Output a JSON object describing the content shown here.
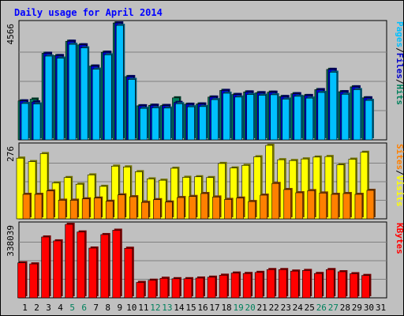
{
  "chart_data": {
    "type": "bar",
    "title": "Daily usage for April 2014",
    "categories": [
      "1",
      "2",
      "3",
      "4",
      "5",
      "6",
      "7",
      "8",
      "9",
      "10",
      "11",
      "12",
      "13",
      "14",
      "15",
      "16",
      "17",
      "18",
      "19",
      "20",
      "21",
      "22",
      "23",
      "24",
      "25",
      "26",
      "27",
      "28",
      "29",
      "30",
      "31"
    ],
    "weekend_days": [
      "5",
      "6",
      "12",
      "13",
      "19",
      "20",
      "26",
      "27"
    ],
    "panels": [
      {
        "id": "hits_files_pages",
        "max_label": "4566",
        "ymax": 4566,
        "series": [
          {
            "name": "Hits",
            "color": "#00805c",
            "values": [
              1520,
              1590,
              3380,
              3290,
              3850,
              3710,
              2880,
              3420,
              4566,
              2470,
              1330,
              1350,
              1340,
              1640,
              1390,
              1400,
              1670,
              1930,
              1770,
              1870,
              1840,
              1860,
              1690,
              1800,
              1730,
              1960,
              2750,
              1880,
              2070,
              1640,
              null
            ]
          },
          {
            "name": "Files",
            "color": "#0000cc",
            "values": [
              1520,
              1480,
              3380,
              3290,
              3850,
              3710,
              2880,
              3420,
              4566,
              2470,
              1330,
              1350,
              1340,
              1460,
              1390,
              1400,
              1670,
              1930,
              1770,
              1870,
              1840,
              1860,
              1690,
              1800,
              1730,
              1960,
              2750,
              1880,
              2070,
              1640,
              null
            ]
          },
          {
            "name": "Pages",
            "color": "#00c0ff",
            "values": [
              1420,
              1400,
              3270,
              3190,
              3730,
              3590,
              2760,
              3320,
              4470,
              2360,
              1230,
              1250,
              1240,
              1410,
              1290,
              1300,
              1570,
              1820,
              1670,
              1770,
              1740,
              1760,
              1590,
              1700,
              1630,
              1850,
              2640,
              1780,
              1960,
              1540,
              null
            ]
          }
        ]
      },
      {
        "id": "visits_sites",
        "max_label": "276",
        "ymax": 276,
        "series": [
          {
            "name": "Visits",
            "color": "#ffff00",
            "values": [
              228,
              215,
              245,
              135,
              155,
              130,
              165,
              122,
              198,
              195,
              177,
              150,
              145,
              190,
              156,
              158,
              155,
              208,
              191,
              201,
              233,
              276,
              222,
              219,
              225,
              232,
              234,
              203,
              224,
              250,
              null
            ]
          },
          {
            "name": "Sites",
            "color": "#ff8000",
            "values": [
              92,
              92,
              105,
              70,
              70,
              75,
              78,
              66,
              90,
              83,
              62,
              72,
              63,
              80,
              84,
              95,
              82,
              73,
              78,
              65,
              89,
              133,
              110,
              98,
              106,
              97,
              92,
              95,
              92,
              107,
              null
            ]
          }
        ]
      },
      {
        "id": "kbytes",
        "max_label": "338039",
        "ymax": 338039,
        "series": [
          {
            "name": "KBytes",
            "color": "#ff0000",
            "values": [
              161000,
              156000,
              280000,
              262000,
              338039,
              303000,
              229000,
              291000,
              311000,
              228000,
              71000,
              81000,
              90000,
              88000,
              88000,
              91000,
              95000,
              104000,
              114000,
              112000,
              117000,
              130000,
              130000,
              123000,
              126000,
              112000,
              130000,
              120000,
              111000,
              103000,
              null
            ]
          }
        ]
      }
    ],
    "legend_right": [
      [
        "Pages",
        "/",
        "Files",
        "/",
        "Hits"
      ],
      [
        "Sites",
        "/",
        "Visits"
      ],
      [
        "KBytes"
      ]
    ],
    "colors": {
      "background": "#c0c0c0",
      "title": "#0000ff",
      "separator": "#000000",
      "divider": "#ffffff",
      "plot_grid": "#808080",
      "weekday_label": "#000000",
      "weekend_label": "#00805c"
    }
  }
}
